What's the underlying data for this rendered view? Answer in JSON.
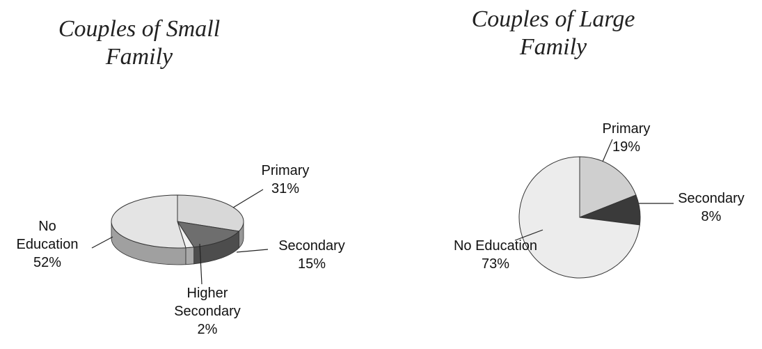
{
  "chart_data": [
    {
      "type": "pie",
      "title": "Couples of Small Family",
      "categories": [
        "Primary",
        "Secondary",
        "Higher Secondary",
        "No Education"
      ],
      "values": [
        31,
        15,
        2,
        52
      ],
      "value_labels": [
        "31%",
        "15%",
        "2%",
        "52%"
      ],
      "colors": [
        "#d8d8d8",
        "#6e6e6e",
        "#f2f2f2",
        "#e4e4e4"
      ]
    },
    {
      "type": "pie",
      "title": "Couples of Large Family",
      "categories": [
        "Primary",
        "Secondary",
        "No Education"
      ],
      "values": [
        19,
        8,
        73
      ],
      "value_labels": [
        "19%",
        "8%",
        "73%"
      ],
      "colors": [
        "#cfcfcf",
        "#3a3a3a",
        "#ececec"
      ]
    }
  ]
}
